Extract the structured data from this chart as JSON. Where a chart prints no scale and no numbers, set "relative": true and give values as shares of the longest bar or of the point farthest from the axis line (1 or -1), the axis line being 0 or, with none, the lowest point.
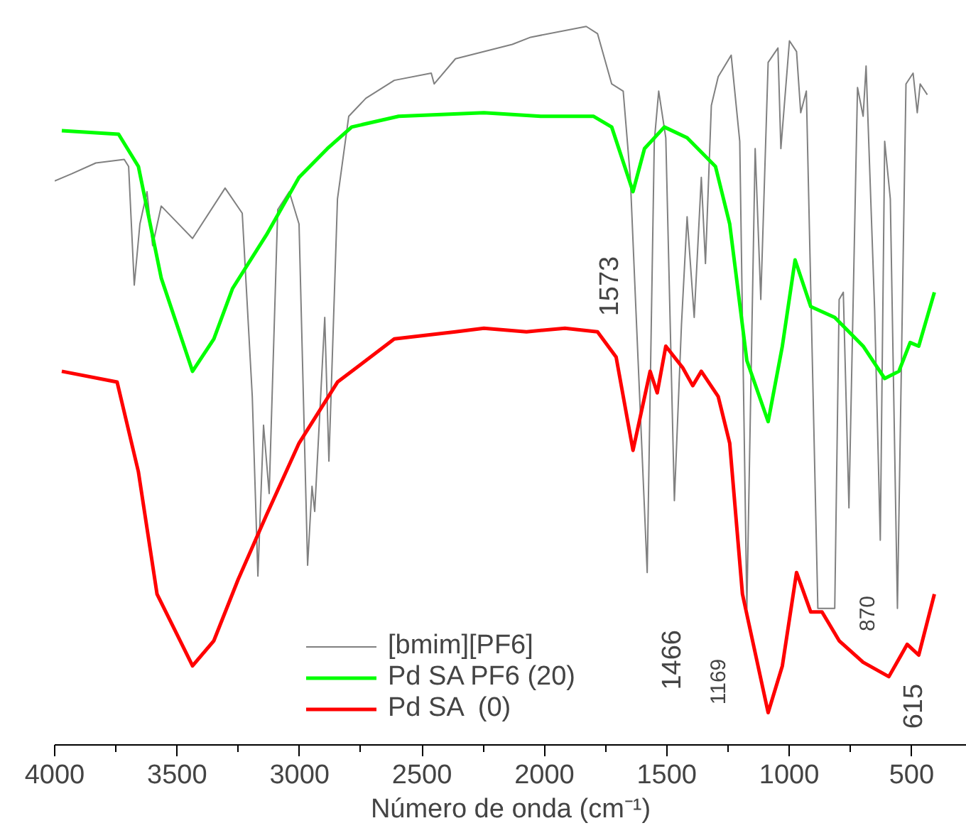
{
  "chart_data": {
    "type": "line",
    "relative": true,
    "xlabel": "Número de onda (cm⁻¹)",
    "xlim": [
      4000,
      275
    ],
    "xticks": [
      4000,
      3500,
      3000,
      2500,
      2000,
      1500,
      1000,
      500
    ],
    "legend": "bottom",
    "grid": false,
    "line_style": "solid",
    "marker": "none",
    "annotations": [
      "1573",
      "1466",
      "1169",
      "870",
      "615"
    ],
    "series": [
      {
        "name": "[bmim][PF6]",
        "color": "#808080",
        "x": [
          4000,
          3930,
          3832,
          3716,
          3698,
          3675,
          3652,
          3623,
          3600,
          3565,
          3437,
          3304,
          3234,
          3193,
          3170,
          3147,
          3124,
          3089,
          3042,
          3002,
          2967,
          2949,
          2938,
          2897,
          2880,
          2845,
          2799,
          2729,
          2613,
          2462,
          2450,
          2363,
          2131,
          2056,
          1829,
          1783,
          1725,
          1678,
          1649,
          1626,
          1580,
          1551,
          1533,
          1504,
          1469,
          1440,
          1417,
          1388,
          1359,
          1342,
          1318,
          1290,
          1237,
          1202,
          1173,
          1139,
          1116,
          1086,
          1046,
          1034,
          999,
          970,
          953,
          930,
          883,
          814,
          796,
          779,
          756,
          721,
          698,
          686,
          651,
          628,
          610,
          587,
          558,
          523,
          494,
          477,
          465,
          436
        ],
        "values": [
          0.785,
          0.795,
          0.81,
          0.815,
          0.805,
          0.64,
          0.725,
          0.77,
          0.695,
          0.75,
          0.705,
          0.775,
          0.74,
          0.485,
          0.235,
          0.445,
          0.35,
          0.745,
          0.77,
          0.725,
          0.25,
          0.36,
          0.325,
          0.595,
          0.395,
          0.76,
          0.875,
          0.9,
          0.925,
          0.935,
          0.92,
          0.955,
          0.975,
          0.985,
          1.0,
          0.99,
          0.92,
          0.91,
          0.79,
          0.605,
          0.24,
          0.84,
          0.91,
          0.845,
          0.34,
          0.585,
          0.735,
          0.595,
          0.79,
          0.67,
          0.89,
          0.93,
          0.96,
          0.84,
          0.19,
          0.83,
          0.62,
          0.95,
          0.97,
          0.83,
          0.98,
          0.965,
          0.88,
          0.91,
          0.19,
          0.19,
          0.62,
          0.63,
          0.33,
          0.915,
          0.875,
          0.945,
          0.605,
          0.285,
          0.84,
          0.76,
          0.19,
          0.92,
          0.935,
          0.88,
          0.92,
          0.905
        ]
      },
      {
        "name": "Pd SA PF6 (20)",
        "color": "#00ff00",
        "x": [
          3971,
          3739,
          3658,
          3565,
          3437,
          3350,
          3274,
          3135,
          3002,
          2886,
          2787,
          2595,
          2247,
          2015,
          1800,
          1725,
          1638,
          1591,
          1510,
          1417,
          1301,
          1243,
          1173,
          1086,
          1028,
          976,
          912,
          814,
          698,
          610,
          552,
          506,
          471,
          407
        ],
        "values": [
          0.855,
          0.85,
          0.805,
          0.65,
          0.52,
          0.565,
          0.635,
          0.71,
          0.79,
          0.83,
          0.86,
          0.875,
          0.88,
          0.875,
          0.875,
          0.86,
          0.77,
          0.83,
          0.86,
          0.845,
          0.805,
          0.725,
          0.535,
          0.45,
          0.555,
          0.675,
          0.61,
          0.595,
          0.555,
          0.51,
          0.52,
          0.56,
          0.555,
          0.63
        ]
      },
      {
        "name": "Pd SA  (0)",
        "color": "#ff0000",
        "x": [
          3971,
          3745,
          3658,
          3582,
          3437,
          3350,
          3251,
          3135,
          3002,
          2845,
          2613,
          2363,
          2247,
          2073,
          1916,
          1783,
          1707,
          1638,
          1568,
          1539,
          1504,
          1435,
          1394,
          1359,
          1290,
          1243,
          1191,
          1086,
          1028,
          970,
          912,
          866,
          796,
          698,
          593,
          518,
          471,
          407
        ],
        "values": [
          0.52,
          0.505,
          0.38,
          0.21,
          0.11,
          0.145,
          0.23,
          0.32,
          0.42,
          0.505,
          0.565,
          0.575,
          0.58,
          0.575,
          0.58,
          0.575,
          0.54,
          0.41,
          0.52,
          0.49,
          0.555,
          0.525,
          0.5,
          0.52,
          0.485,
          0.42,
          0.21,
          0.045,
          0.11,
          0.24,
          0.185,
          0.185,
          0.145,
          0.115,
          0.095,
          0.14,
          0.125,
          0.21
        ]
      }
    ]
  }
}
